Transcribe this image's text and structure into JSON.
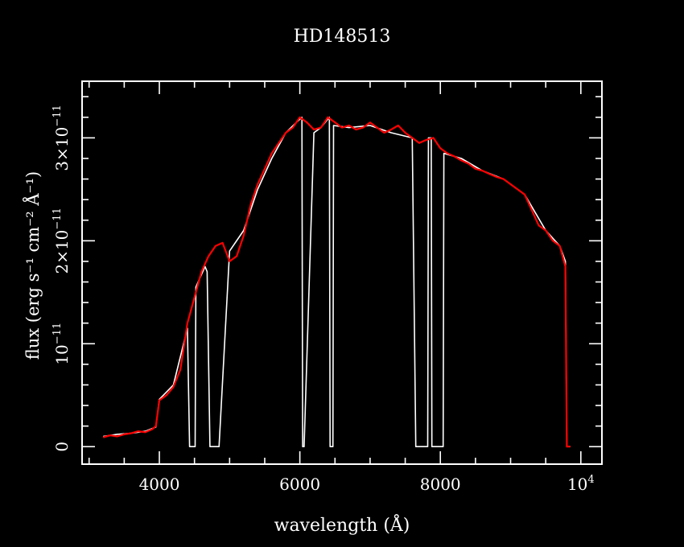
{
  "chart_data": {
    "type": "line",
    "title": "HD148513",
    "xlabel": "wavelength (Å)",
    "ylabel": "flux (erg s⁻¹ cm⁻² Å⁻¹)",
    "xlim": [
      2900,
      10300
    ],
    "ylim": [
      -1.7e-12,
      3.55e-11
    ],
    "x_ticks": [
      {
        "value": 4000,
        "label": "4000"
      },
      {
        "value": 6000,
        "label": "6000"
      },
      {
        "value": 8000,
        "label": "8000"
      },
      {
        "value": 10000,
        "label": "10",
        "exponent": "4"
      }
    ],
    "y_ticks": [
      {
        "value": 0,
        "label": "0"
      },
      {
        "value": 1e-11,
        "label": "10",
        "exponent": "−11"
      },
      {
        "value": 2e-11,
        "label": "2×10",
        "exponent": "−11"
      },
      {
        "value": 3e-11,
        "label": "3×10",
        "exponent": "−11"
      }
    ],
    "colors": {
      "background": "#000000",
      "axes": "#ffffff",
      "observed": "#ffffff",
      "model": "#ff0000"
    },
    "series": [
      {
        "color": "#ff0000",
        "x": [
          3200,
          3300,
          3400,
          3500,
          3600,
          3700,
          3800,
          3900,
          3950,
          4000,
          4100,
          4200,
          4300,
          4400,
          4500,
          4600,
          4700,
          4800,
          4900,
          5000,
          5100,
          5200,
          5300,
          5400,
          5500,
          5600,
          5700,
          5800,
          5900,
          6000,
          6100,
          6200,
          6300,
          6400,
          6500,
          6600,
          6700,
          6800,
          6900,
          7000,
          7100,
          7200,
          7300,
          7400,
          7500,
          7600,
          7700,
          7800,
          7900,
          8000,
          8100,
          8200,
          8300,
          8400,
          8500,
          8600,
          8700,
          8800,
          8900,
          9000,
          9100,
          9200,
          9300,
          9400,
          9500,
          9600,
          9700,
          9780,
          9800,
          9850
        ],
        "y": [
          9e-13,
          1.1e-12,
          1e-12,
          1.2e-12,
          1.3e-12,
          1.5e-12,
          1.4e-12,
          1.7e-12,
          2e-12,
          4.5e-12,
          5e-12,
          5.8e-12,
          7.5e-12,
          1.2e-11,
          1.45e-11,
          1.7e-11,
          1.85e-11,
          1.95e-11,
          1.98e-11,
          1.8e-11,
          1.85e-11,
          2.05e-11,
          2.35e-11,
          2.55e-11,
          2.7e-11,
          2.85e-11,
          2.95e-11,
          3.05e-11,
          3.1e-11,
          3.2e-11,
          3.15e-11,
          3.08e-11,
          3.1e-11,
          3.2e-11,
          3.15e-11,
          3.1e-11,
          3.12e-11,
          3.08e-11,
          3.1e-11,
          3.15e-11,
          3.1e-11,
          3.05e-11,
          3.08e-11,
          3.12e-11,
          3.05e-11,
          3e-11,
          2.95e-11,
          2.98e-11,
          3e-11,
          2.9e-11,
          2.85e-11,
          2.82e-11,
          2.78e-11,
          2.75e-11,
          2.7e-11,
          2.68e-11,
          2.65e-11,
          2.62e-11,
          2.6e-11,
          2.55e-11,
          2.5e-11,
          2.45e-11,
          2.3e-11,
          2.15e-11,
          2.1e-11,
          2e-11,
          1.95e-11,
          1.75e-11,
          0.0,
          0.0
        ]
      },
      {
        "color": "#ffffff",
        "x": [
          3200,
          3400,
          3600,
          3800,
          3950,
          4000,
          4200,
          4400,
          4430,
          4510,
          4520,
          4650,
          4680,
          4720,
          4730,
          4850,
          5000,
          5200,
          5400,
          5600,
          5800,
          5950,
          6030,
          6040,
          6060,
          6200,
          6300,
          6420,
          6430,
          6470,
          6480,
          6700,
          7000,
          7300,
          7600,
          7650,
          7660,
          7820,
          7830,
          7870,
          7880,
          8000,
          8040,
          8050,
          8300,
          8600,
          8900,
          9200,
          9500,
          9700,
          9780,
          9800,
          9850
        ],
        "y": [
          1e-12,
          1.2e-12,
          1.3e-12,
          1.5e-12,
          1.9e-12,
          4.6e-12,
          6e-12,
          1.15e-11,
          0.0,
          0.0,
          1.55e-11,
          1.75e-11,
          1.7e-11,
          0.0,
          0.0,
          0.0,
          1.9e-11,
          2.1e-11,
          2.5e-11,
          2.8e-11,
          3.05e-11,
          3.15e-11,
          3.2e-11,
          0.0,
          0.0,
          3.05e-11,
          3.1e-11,
          3.2e-11,
          0.0,
          0.0,
          3.12e-11,
          3.1e-11,
          3.12e-11,
          3.05e-11,
          3e-11,
          0.0,
          0.0,
          0.0,
          3e-11,
          3e-11,
          0.0,
          0.0,
          0.0,
          2.85e-11,
          2.8e-11,
          2.68e-11,
          2.6e-11,
          2.45e-11,
          2.1e-11,
          1.95e-11,
          1.8e-11,
          0.0,
          0.0
        ]
      }
    ]
  }
}
